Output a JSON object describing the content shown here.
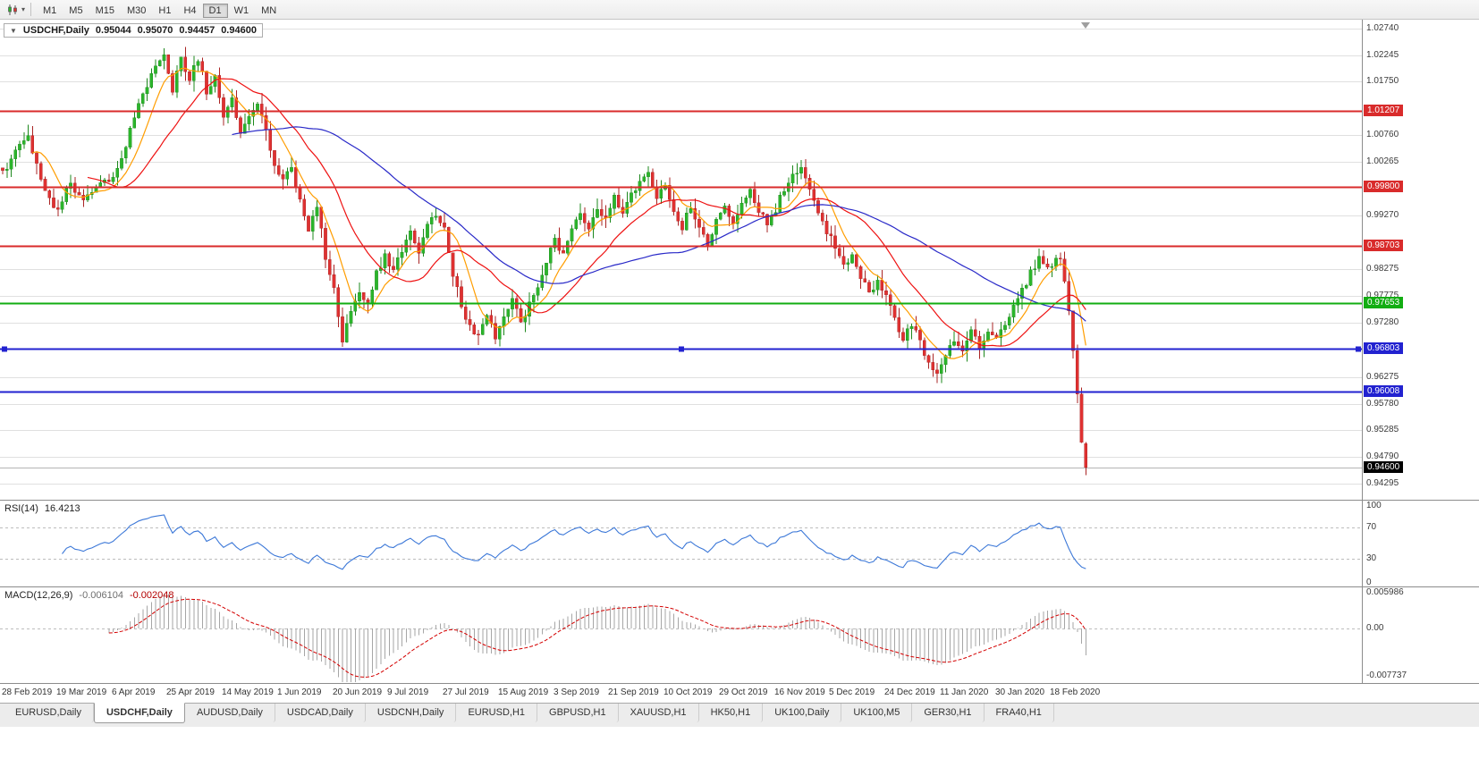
{
  "toolbar": {
    "chart_icon": "candlestick-chart",
    "timeframes": [
      "M1",
      "M5",
      "M15",
      "M30",
      "H1",
      "H4",
      "D1",
      "W1",
      "MN"
    ],
    "active_timeframe": "D1"
  },
  "symbol_info": {
    "collapse_glyph": "▼",
    "symbol": "USDCHF,Daily",
    "open": "0.95044",
    "high": "0.95070",
    "low": "0.94457",
    "close": "0.94600"
  },
  "chart_data": {
    "type": "candlestick",
    "symbol": "USDCHF",
    "timeframe": "Daily",
    "price_axis_max": 1.029,
    "price_axis_min": 0.94,
    "grid_labels": [
      "1.02740",
      "1.02245",
      "1.01750",
      "1.00760",
      "1.00265",
      "0.99270",
      "0.98275",
      "0.97775",
      "0.97280",
      "0.96275",
      "0.95780",
      "0.95285",
      "0.94790",
      "0.94295"
    ],
    "horizontal_lines": [
      {
        "value": 1.01207,
        "label": "1.01207",
        "color": "#d92b2b",
        "width": 2
      },
      {
        "value": 0.998,
        "label": "0.99800",
        "color": "#d92b2b",
        "width": 2
      },
      {
        "value": 0.98703,
        "label": "0.98703",
        "color": "#d92b2b",
        "width": 2
      },
      {
        "value": 0.97653,
        "label": "0.97653",
        "color": "#12ad12",
        "width": 2
      },
      {
        "value": 0.96803,
        "label": "0.96803",
        "color": "#2222d0",
        "width": 2,
        "selected": true
      },
      {
        "value": 0.96008,
        "label": "0.96008",
        "color": "#2222d0",
        "width": 2
      }
    ],
    "current_price": {
      "value": 0.946,
      "label": "0.94600",
      "tag_color": "#000000"
    },
    "candle_count": 256,
    "price_path": [
      [
        0,
        1.0005
      ],
      [
        3,
        1.0045
      ],
      [
        6,
        1.008
      ],
      [
        9,
        0.999
      ],
      [
        13,
        0.9935
      ],
      [
        16,
        0.999
      ],
      [
        19,
        0.995
      ],
      [
        22,
        0.9985
      ],
      [
        26,
        1.0
      ],
      [
        29,
        1.006
      ],
      [
        32,
        1.013
      ],
      [
        35,
        1.019
      ],
      [
        38,
        1.0225
      ],
      [
        40,
        1.016
      ],
      [
        42,
        1.0215
      ],
      [
        44,
        1.018
      ],
      [
        46,
        1.022
      ],
      [
        48,
        1.0155
      ],
      [
        50,
        1.019
      ],
      [
        52,
        1.011
      ],
      [
        54,
        1.014
      ],
      [
        56,
        1.0075
      ],
      [
        58,
        1.011
      ],
      [
        60,
        1.014
      ],
      [
        62,
        1.008
      ],
      [
        64,
        1.002
      ],
      [
        66,
        0.999
      ],
      [
        68,
        1.0015
      ],
      [
        70,
        0.995
      ],
      [
        72,
        0.9905
      ],
      [
        74,
        0.9945
      ],
      [
        76,
        0.985
      ],
      [
        78,
        0.979
      ],
      [
        80,
        0.9693
      ],
      [
        82,
        0.975
      ],
      [
        84,
        0.979
      ],
      [
        86,
        0.976
      ],
      [
        88,
        0.982
      ],
      [
        90,
        0.985
      ],
      [
        92,
        0.9825
      ],
      [
        94,
        0.986
      ],
      [
        96,
        0.9895
      ],
      [
        98,
        0.9855
      ],
      [
        100,
        0.9905
      ],
      [
        102,
        0.993
      ],
      [
        104,
        0.99
      ],
      [
        106,
        0.982
      ],
      [
        108,
        0.976
      ],
      [
        110,
        0.972
      ],
      [
        112,
        0.97
      ],
      [
        114,
        0.974
      ],
      [
        116,
        0.9705
      ],
      [
        118,
        0.9745
      ],
      [
        120,
        0.9775
      ],
      [
        122,
        0.973
      ],
      [
        124,
        0.976
      ],
      [
        126,
        0.98
      ],
      [
        128,
        0.9845
      ],
      [
        130,
        0.988
      ],
      [
        132,
        0.985
      ],
      [
        134,
        0.9895
      ],
      [
        136,
        0.993
      ],
      [
        138,
        0.9905
      ],
      [
        140,
        0.9945
      ],
      [
        142,
        0.992
      ],
      [
        144,
        0.996
      ],
      [
        146,
        0.993
      ],
      [
        148,
        0.9965
      ],
      [
        150,
        0.999
      ],
      [
        152,
        1.0005
      ],
      [
        154,
        0.996
      ],
      [
        156,
        0.9985
      ],
      [
        158,
        0.994
      ],
      [
        160,
        0.9905
      ],
      [
        162,
        0.9945
      ],
      [
        164,
        0.991
      ],
      [
        166,
        0.987
      ],
      [
        168,
        0.992
      ],
      [
        170,
        0.9945
      ],
      [
        172,
        0.9905
      ],
      [
        174,
        0.9945
      ],
      [
        176,
        0.9975
      ],
      [
        178,
        0.994
      ],
      [
        180,
        0.9905
      ],
      [
        182,
        0.994
      ],
      [
        184,
        0.9975
      ],
      [
        186,
        1.0
      ],
      [
        188,
        1.0015
      ],
      [
        190,
        0.9975
      ],
      [
        192,
        0.9935
      ],
      [
        194,
        0.99
      ],
      [
        196,
        0.987
      ],
      [
        198,
        0.983
      ],
      [
        200,
        0.9855
      ],
      [
        202,
        0.9815
      ],
      [
        204,
        0.978
      ],
      [
        206,
        0.981
      ],
      [
        208,
        0.9775
      ],
      [
        210,
        0.9735
      ],
      [
        212,
        0.97
      ],
      [
        214,
        0.9725
      ],
      [
        216,
        0.969
      ],
      [
        218,
        0.9655
      ],
      [
        220,
        0.963
      ],
      [
        222,
        0.9665
      ],
      [
        224,
        0.97
      ],
      [
        226,
        0.968
      ],
      [
        228,
        0.971
      ],
      [
        230,
        0.9685
      ],
      [
        232,
        0.9715
      ],
      [
        234,
        0.9695
      ],
      [
        236,
        0.9725
      ],
      [
        238,
        0.9755
      ],
      [
        240,
        0.979
      ],
      [
        242,
        0.982
      ],
      [
        244,
        0.9845
      ],
      [
        246,
        0.9825
      ],
      [
        248,
        0.985
      ],
      [
        249,
        0.9845
      ],
      [
        250,
        0.98
      ],
      [
        251,
        0.9745
      ],
      [
        252,
        0.968
      ],
      [
        253,
        0.96
      ],
      [
        254,
        0.9505
      ],
      [
        255,
        0.946
      ]
    ],
    "moving_averages": [
      {
        "period": 8,
        "color": "#ff9d00"
      },
      {
        "period": 21,
        "color": "#ee1111"
      },
      {
        "period": 55,
        "color": "#2929c8"
      }
    ],
    "colors": {
      "up": "#2bb52b",
      "up_wick": "#1d881d",
      "down": "#df3131",
      "down_wick": "#aa2424",
      "grid": "#e0e0e0",
      "bid_line": "#b4b4b4"
    }
  },
  "rsi": {
    "name": "RSI(14)",
    "value": "16.4213",
    "period": 14,
    "levels": [
      "100",
      "70",
      "30",
      "0"
    ],
    "dashed_levels": [
      70,
      30
    ],
    "line_color": "#3c78d8"
  },
  "macd": {
    "name": "MACD(12,26,9)",
    "value_main": "-0.006104",
    "value_signal": "-0.002048",
    "fast": 12,
    "slow": 26,
    "signal": 9,
    "axis_labels": [
      "0.005986",
      "0.00",
      "-0.007737"
    ],
    "scale_max": 0.0068,
    "scale_min": -0.0088,
    "hist_color": "#a6a6a6",
    "signal_color": "#d40000"
  },
  "date_axis": {
    "candles_per_label": 13,
    "labels": [
      "28 Feb 2019",
      "19 Mar 2019",
      "6 Apr 2019",
      "25 Apr 2019",
      "14 May 2019",
      "1 Jun 2019",
      "20 Jun 2019",
      "9 Jul 2019",
      "27 Jul 2019",
      "15 Aug 2019",
      "3 Sep 2019",
      "21 Sep 2019",
      "10 Oct 2019",
      "29 Oct 2019",
      "16 Nov 2019",
      "5 Dec 2019",
      "24 Dec 2019",
      "11 Jan 2020",
      "30 Jan 2020",
      "18 Feb 2020"
    ]
  },
  "tabs": {
    "items": [
      "EURUSD,Daily",
      "USDCHF,Daily",
      "AUDUSD,Daily",
      "USDCAD,Daily",
      "USDCNH,Daily",
      "EURUSD,H1",
      "GBPUSD,H1",
      "XAUUSD,H1",
      "HK50,H1",
      "UK100,Daily",
      "UK100,M5",
      "GER30,H1",
      "FRA40,H1"
    ],
    "active": "USDCHF,Daily"
  }
}
